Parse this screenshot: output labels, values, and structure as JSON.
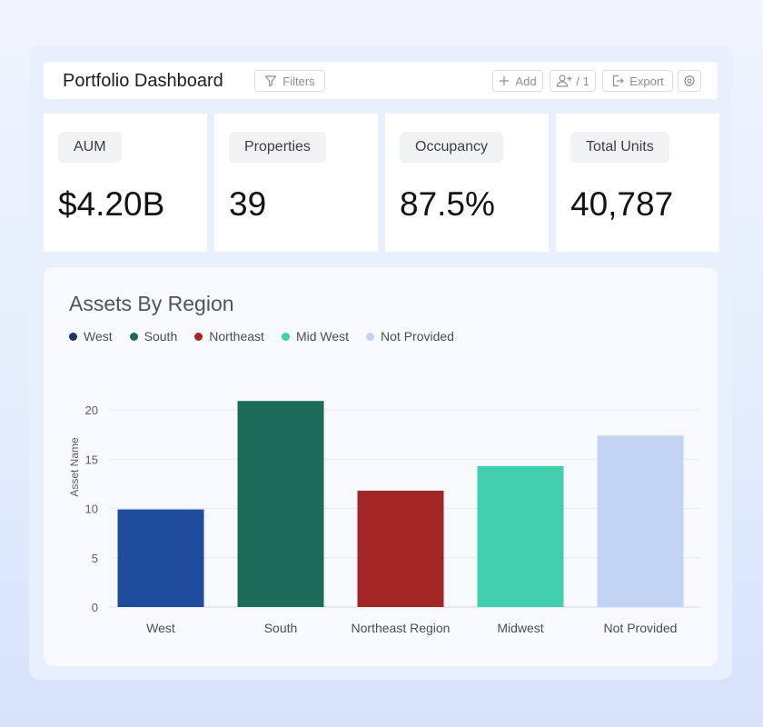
{
  "header": {
    "title": "Portfolio Dashboard",
    "filters_label": "Filters",
    "add_label": "Add",
    "users_count": "/ 1",
    "export_label": "Export"
  },
  "kpis": [
    {
      "label": "AUM",
      "value": "$4.20B"
    },
    {
      "label": "Properties",
      "value": "39"
    },
    {
      "label": "Occupancy",
      "value": "87.5%"
    },
    {
      "label": "Total Units",
      "value": "40,787"
    }
  ],
  "legend": [
    {
      "label": "West",
      "color": "#1f3566"
    },
    {
      "label": "South",
      "color": "#1b6b5a"
    },
    {
      "label": "Northeast",
      "color": "#a32626"
    },
    {
      "label": "Mid West",
      "color": "#3fcfad"
    },
    {
      "label": "Not Provided",
      "color": "#c3d3f4"
    }
  ],
  "chart_data": {
    "type": "bar",
    "title": "Assets By Region",
    "ylabel": "Asset Name",
    "xlabel": "",
    "categories": [
      "West",
      "South",
      "Northeast Region",
      "Midwest",
      "Not Provided"
    ],
    "values": [
      9.9,
      20.9,
      11.8,
      14.3,
      17.4
    ],
    "colors": [
      "#1f4b9c",
      "#1d6b5b",
      "#a32626",
      "#41cfae",
      "#c3d3f4"
    ],
    "ylim": [
      0,
      20
    ],
    "yticks": [
      "0",
      "5",
      "10",
      "15",
      "20"
    ],
    "grid": true,
    "legend_position": "top-left"
  }
}
